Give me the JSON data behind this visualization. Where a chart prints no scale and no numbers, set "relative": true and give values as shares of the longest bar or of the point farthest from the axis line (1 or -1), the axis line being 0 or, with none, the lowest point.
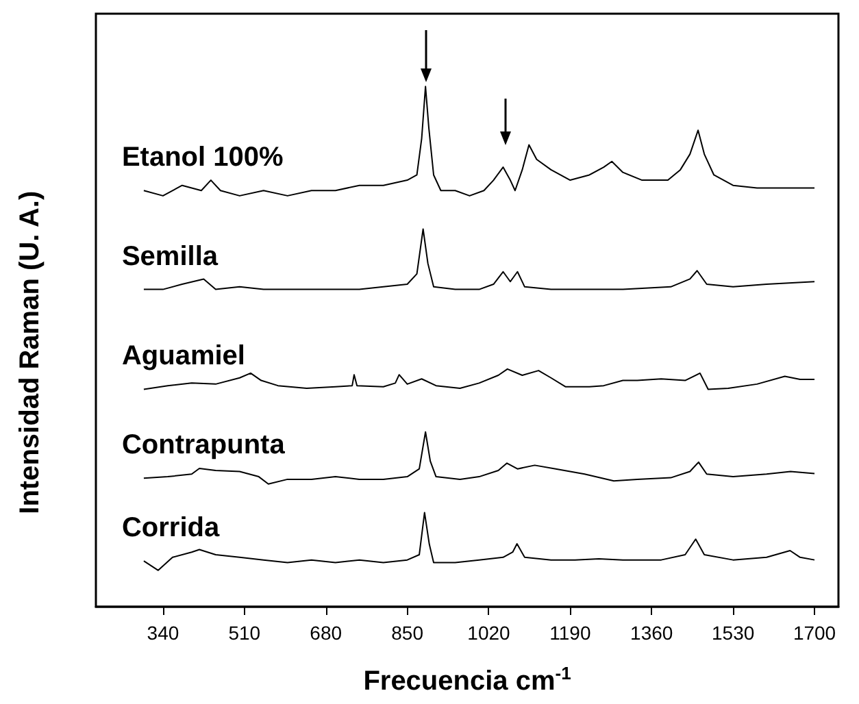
{
  "chart_data": {
    "type": "line",
    "xlabel": "Frecuencia cm$^{-1}$",
    "ylabel": "Intensidad Raman (U. A.)",
    "relative": true,
    "xlim": [
      200,
      1750
    ],
    "xticks": [
      340,
      510,
      680,
      850,
      1020,
      1190,
      1360,
      1530,
      1700
    ],
    "marker": "none",
    "line_style": "solid",
    "series": [
      {
        "name": "Etanol 100%",
        "color": "#000000",
        "x": [
          300,
          340,
          380,
          420,
          440,
          460,
          500,
          550,
          600,
          650,
          700,
          750,
          800,
          850,
          870,
          880,
          888,
          895,
          905,
          920,
          950,
          980,
          1010,
          1030,
          1050,
          1065,
          1075,
          1090,
          1104,
          1120,
          1150,
          1190,
          1230,
          1260,
          1277,
          1300,
          1340,
          1394,
          1420,
          1440,
          1457,
          1470,
          1490,
          1530,
          1580,
          1640,
          1700
        ],
        "values": [
          0.8,
          0.79,
          0.81,
          0.8,
          0.82,
          0.8,
          0.79,
          0.8,
          0.79,
          0.8,
          0.8,
          0.81,
          0.81,
          0.82,
          0.83,
          0.9,
          1.0,
          0.92,
          0.83,
          0.8,
          0.8,
          0.79,
          0.8,
          0.82,
          0.845,
          0.82,
          0.8,
          0.84,
          0.888,
          0.86,
          0.84,
          0.82,
          0.83,
          0.845,
          0.856,
          0.835,
          0.82,
          0.82,
          0.84,
          0.87,
          0.916,
          0.87,
          0.83,
          0.81,
          0.805,
          0.805,
          0.805
        ]
      },
      {
        "name": "Semilla",
        "color": "#000000",
        "x": [
          300,
          340,
          380,
          425,
          450,
          500,
          550,
          600,
          650,
          700,
          750,
          800,
          850,
          870,
          883,
          893,
          905,
          950,
          1000,
          1030,
          1050,
          1065,
          1080,
          1095,
          1150,
          1200,
          1300,
          1400,
          1440,
          1455,
          1475,
          1530,
          1600,
          1700
        ],
        "values": [
          0.61,
          0.61,
          0.62,
          0.63,
          0.61,
          0.615,
          0.61,
          0.61,
          0.61,
          0.61,
          0.61,
          0.615,
          0.62,
          0.64,
          0.726,
          0.66,
          0.615,
          0.61,
          0.61,
          0.62,
          0.644,
          0.625,
          0.644,
          0.615,
          0.61,
          0.61,
          0.61,
          0.615,
          0.63,
          0.646,
          0.62,
          0.615,
          0.62,
          0.625
        ]
      },
      {
        "name": "Aguamiel",
        "color": "#000000",
        "x": [
          300,
          350,
          400,
          450,
          500,
          523,
          545,
          580,
          640,
          700,
          735,
          739,
          745,
          800,
          825,
          833,
          850,
          880,
          910,
          960,
          1000,
          1040,
          1059,
          1090,
          1124,
          1150,
          1180,
          1230,
          1260,
          1300,
          1330,
          1380,
          1430,
          1461,
          1478,
          1520,
          1580,
          1638,
          1670,
          1700
        ],
        "values": [
          0.418,
          0.425,
          0.43,
          0.428,
          0.44,
          0.449,
          0.435,
          0.425,
          0.42,
          0.423,
          0.425,
          0.446,
          0.425,
          0.423,
          0.43,
          0.446,
          0.428,
          0.438,
          0.425,
          0.42,
          0.43,
          0.445,
          0.457,
          0.445,
          0.454,
          0.44,
          0.423,
          0.423,
          0.425,
          0.435,
          0.435,
          0.438,
          0.435,
          0.449,
          0.418,
          0.42,
          0.428,
          0.443,
          0.437,
          0.437
        ]
      },
      {
        "name": "Contrapunta",
        "color": "#000000",
        "x": [
          300,
          350,
          400,
          416,
          450,
          500,
          540,
          560,
          600,
          650,
          700,
          750,
          800,
          850,
          875,
          888,
          898,
          910,
          960,
          1000,
          1040,
          1058,
          1080,
          1116,
          1160,
          1220,
          1281,
          1330,
          1400,
          1440,
          1458,
          1475,
          1530,
          1600,
          1650,
          1700
        ],
        "values": [
          0.247,
          0.25,
          0.255,
          0.266,
          0.262,
          0.26,
          0.25,
          0.236,
          0.245,
          0.245,
          0.25,
          0.245,
          0.245,
          0.25,
          0.265,
          0.336,
          0.28,
          0.25,
          0.245,
          0.25,
          0.262,
          0.276,
          0.265,
          0.272,
          0.265,
          0.255,
          0.242,
          0.245,
          0.248,
          0.26,
          0.278,
          0.255,
          0.25,
          0.255,
          0.26,
          0.256
        ]
      },
      {
        "name": "Corrida",
        "color": "#000000",
        "x": [
          300,
          330,
          360,
          400,
          416,
          450,
          500,
          550,
          600,
          650,
          700,
          750,
          800,
          850,
          875,
          886,
          896,
          905,
          950,
          1000,
          1050,
          1070,
          1079,
          1095,
          1150,
          1200,
          1250,
          1300,
          1380,
          1430,
          1452,
          1470,
          1530,
          1600,
          1649,
          1670,
          1700
        ],
        "values": [
          0.088,
          0.07,
          0.095,
          0.105,
          0.11,
          0.1,
          0.095,
          0.09,
          0.085,
          0.09,
          0.085,
          0.09,
          0.085,
          0.09,
          0.1,
          0.181,
          0.12,
          0.085,
          0.085,
          0.09,
          0.095,
          0.105,
          0.121,
          0.095,
          0.09,
          0.09,
          0.092,
          0.09,
          0.09,
          0.1,
          0.13,
          0.1,
          0.09,
          0.095,
          0.108,
          0.095,
          0.09
        ]
      }
    ]
  }
}
